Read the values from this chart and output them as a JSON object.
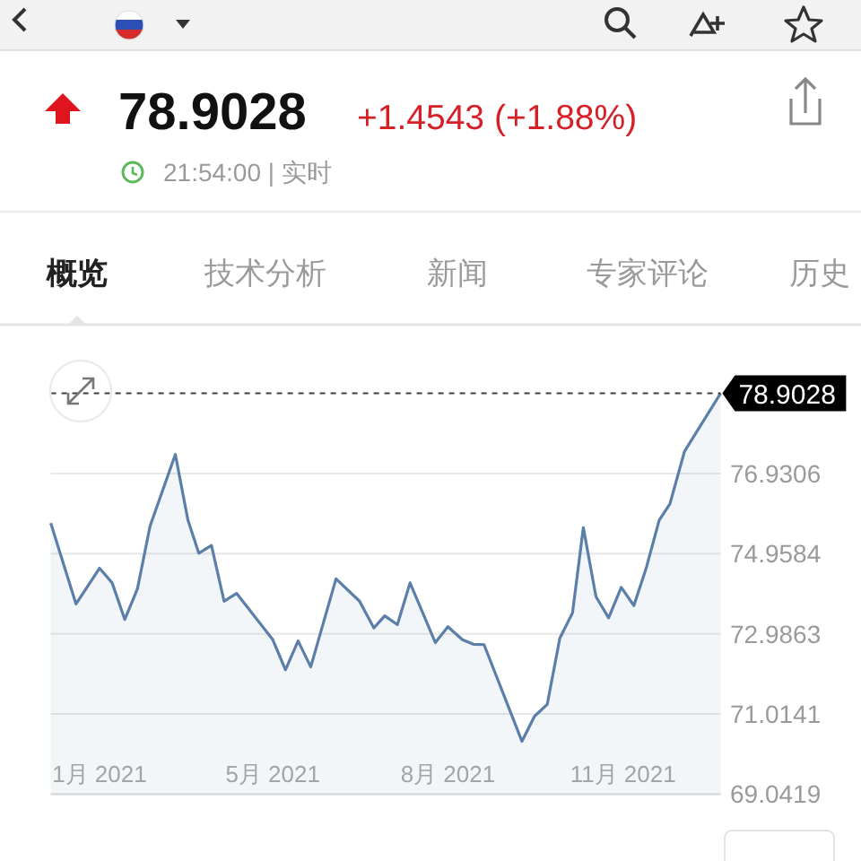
{
  "chart_data": {
    "type": "area",
    "title": "78.9028",
    "subtitle": "+1.4543 (+1.88%)",
    "annotations": [
      "21:54:00 | 实时",
      "概览",
      "技术分析",
      "新闻",
      "专家评论",
      "历史"
    ],
    "x": [
      "2021-01-25",
      "2021-02-08",
      "2021-02-21",
      "2021-02-28",
      "2021-03-07",
      "2021-03-14",
      "2021-03-21",
      "2021-04-04",
      "2021-04-11",
      "2021-04-17",
      "2021-04-24",
      "2021-05-01",
      "2021-05-08",
      "2021-05-28",
      "2021-06-04",
      "2021-06-11",
      "2021-06-18",
      "2021-07-02",
      "2021-07-15",
      "2021-07-23",
      "2021-07-29",
      "2021-08-05",
      "2021-08-12",
      "2021-08-26",
      "2021-09-02",
      "2021-09-10",
      "2021-09-16",
      "2021-09-22",
      "2021-10-13",
      "2021-10-20",
      "2021-10-27",
      "2021-11-03",
      "2021-11-10",
      "2021-11-16",
      "2021-11-23",
      "2021-11-30",
      "2021-12-07",
      "2021-12-14",
      "2021-12-21",
      "2021-12-28",
      "2022-01-03",
      "2022-01-11",
      "2022-01-31"
    ],
    "series": [
      {
        "color": "#5b7fa8",
        "values": [
          75.71,
          73.72,
          74.6,
          74.24,
          73.34,
          74.09,
          75.64,
          77.4,
          75.78,
          74.97,
          75.16,
          73.79,
          73.98,
          72.84,
          72.1,
          72.81,
          72.17,
          74.34,
          73.79,
          73.13,
          73.43,
          73.21,
          74.24,
          72.77,
          73.16,
          72.84,
          72.73,
          72.72,
          70.34,
          70.96,
          71.25,
          72.88,
          73.5,
          75.6,
          73.9,
          73.38,
          74.13,
          73.68,
          74.63,
          75.78,
          76.19,
          77.47,
          78.9028
        ]
      }
    ],
    "xlim": [
      "2021-01-25",
      "2022-01-31"
    ],
    "xticks": [
      {
        "value": "2021-02-21",
        "label": "1月 2021"
      },
      {
        "value": "2021-05-28",
        "label": "5月 2021"
      },
      {
        "value": "2021-09-02",
        "label": "8月 2021"
      },
      {
        "value": "2021-12-08",
        "label": "11月 2021"
      }
    ],
    "ylim": [
      69.0419,
      78.9028
    ],
    "yticks": [
      69.0419,
      71.0141,
      72.9863,
      74.9584,
      76.9306
    ],
    "ref_lines": [
      {
        "axis": "y",
        "value": 78.9028,
        "label": "78.9028",
        "line_style": "dashed",
        "color": "#000000"
      }
    ],
    "grid": "y",
    "line_style": "solid"
  }
}
